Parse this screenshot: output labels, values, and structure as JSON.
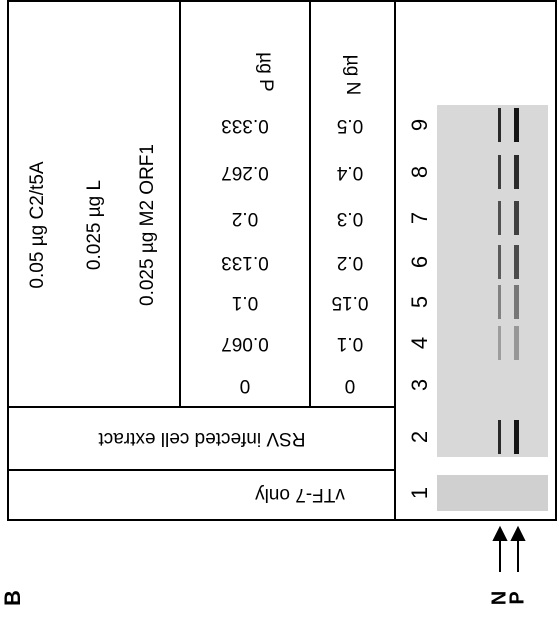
{
  "panel_label": "B",
  "conditions": [
    "0.05 µg C2/t5A",
    "0.025 µg L",
    "0.025 µg M2 ORF1"
  ],
  "p_header": "µg P",
  "n_header": "µg N",
  "p_values": [
    "0",
    "0.067",
    "0.1",
    "0.133",
    "0.2",
    "0.267",
    "0.333"
  ],
  "n_values": [
    "0",
    "0.1",
    "0.15",
    "0.2",
    "0.3",
    "0.4",
    "0.5"
  ],
  "rsv_label": "RSV infected cell extract",
  "vtf_label": "vTF-7 only",
  "lanes": [
    "1",
    "2",
    "3",
    "4",
    "5",
    "6",
    "7",
    "8",
    "9"
  ],
  "arrow_labels": [
    "N",
    "P"
  ]
}
